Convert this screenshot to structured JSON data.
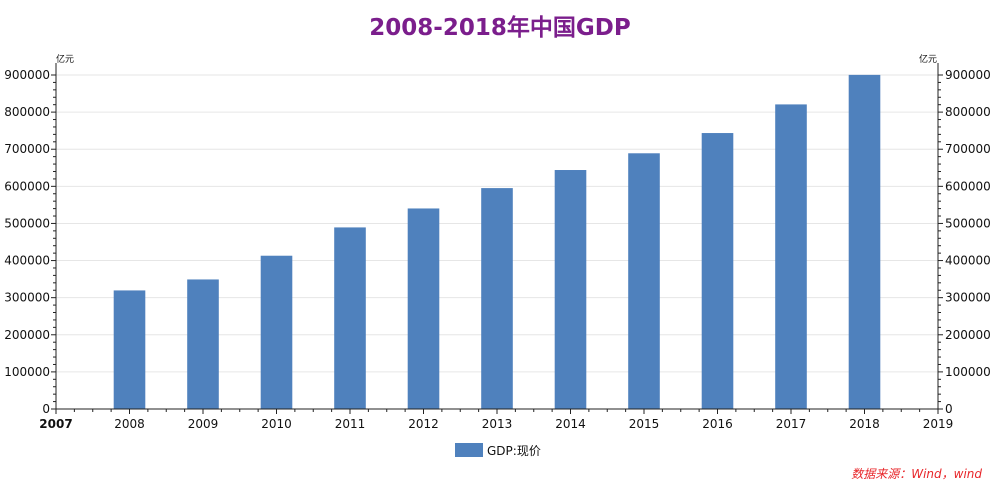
{
  "chart_data": {
    "type": "bar",
    "title": "2008-2018年中国GDP",
    "categories": [
      "2008",
      "2009",
      "2010",
      "2011",
      "2012",
      "2013",
      "2014",
      "2015",
      "2016",
      "2017",
      "2018"
    ],
    "x_axis_range": [
      2007,
      2019
    ],
    "x_tick_labels": [
      "2007",
      "2008",
      "2009",
      "2010",
      "2011",
      "2012",
      "2013",
      "2014",
      "2015",
      "2016",
      "2017",
      "2018",
      "2019"
    ],
    "series": [
      {
        "name": "GDP:现价",
        "values": [
          319516,
          349081,
          413030,
          489301,
          540367,
          595244,
          643974,
          689052,
          743586,
          820754,
          900309
        ]
      }
    ],
    "ylim": [
      0,
      900000
    ],
    "y_ticks": [
      0,
      100000,
      200000,
      300000,
      400000,
      500000,
      600000,
      700000,
      800000,
      900000
    ],
    "y_unit_left": "亿元",
    "y_unit_right": "亿元",
    "secondary_y_axis": true,
    "grid": "horizontal",
    "legend_position": "bottom-center",
    "bar_color": "#4f81bd",
    "source_note": "数据来源：Wind，wind"
  }
}
